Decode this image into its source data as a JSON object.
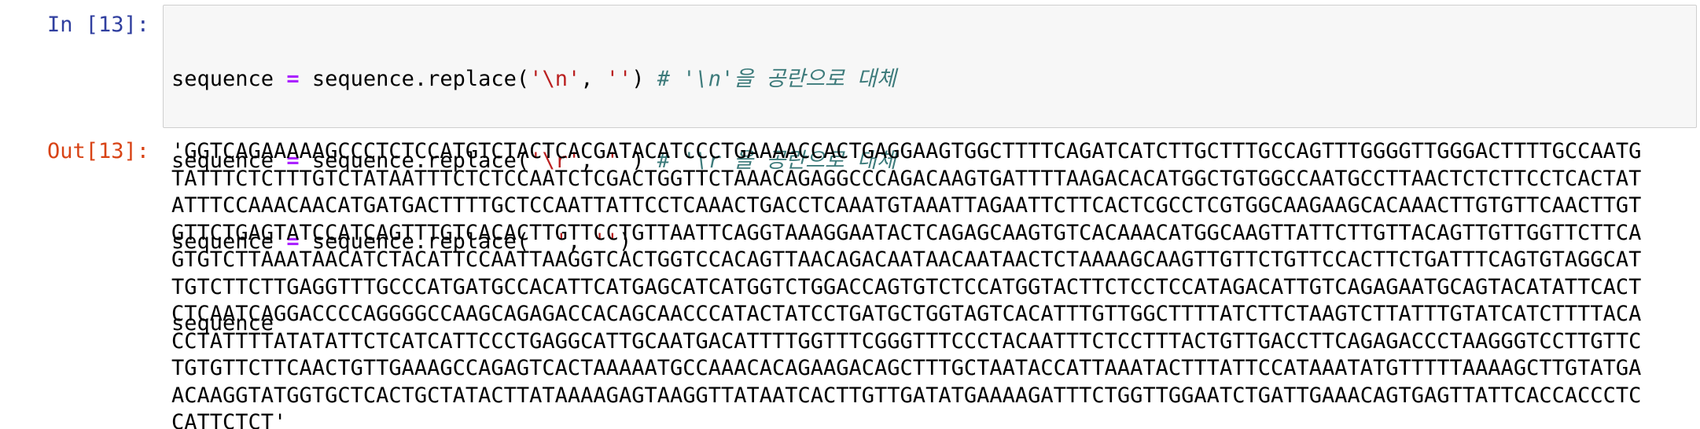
{
  "input": {
    "prompt": "In [13]:",
    "code": [
      [
        "sequence ",
        "=",
        " sequence.replace(",
        "'\\n'",
        ", ",
        "''",
        ") ",
        "# '\\n'을 공란으로 대체"
      ],
      [
        "sequence ",
        "=",
        " sequence.replace(",
        "'\\r'",
        ", ",
        "''",
        ") ",
        "# '\\r'을 공란으로 대체"
      ],
      [
        "sequence ",
        "=",
        " sequence.replace(",
        "' '",
        ", ",
        "''",
        ")"
      ],
      [
        "sequence"
      ]
    ]
  },
  "output": {
    "prompt": "Out[13]:",
    "lines": [
      "'GGTCAGAAAAAGCCCTCTCCATGTCTACTCACGATACATCCCTGAAAACCACTGAGGAAGTGGCTTTTCAGATCATCTTGCTTTGCCAGTTTGGGGTTGGGACTTTTGCCAATG",
      "TATTTCTCTTTGTCTATAATTTCTCTCCAATCTCGACTGGTTCTAAACAGAGGCCCAGACAAGTGATTTTAAGACACATGGCTGTGGCCAATGCCTTAACTCTCTTCCTCACTAT",
      "ATTTCCAAACAACATGATGACTTTTGCTCCAATTATTCCTCAAACTGACCTCAAATGTAAATTAGAATTCTTCACTCGCCTCGTGGCAAGAAGCACAAACTTGTGTTCAACTTGT",
      "GTTCTGAGTATCCATCAGTTTGTCACACTTGTTCCTGTTAATTCAGGTAAAGGAATACTCAGAGCAAGTGTCACAAACATGGCAAGTTATTCTTGTTACAGTTGTTGGTTCTTCA",
      "GTGTCTTAAATAACATCTACATTCCAATTAAGGTCACTGGTCCACAGTTAACAGACAATAACAATAACTCTAAAAGCAAGTTGTTCTGTTCCACTTCTGATTTCAGTGTAGGCAT",
      "TGTCTTCTTGAGGTTTGCCCATGATGCCACATTCATGAGCATCATGGTCTGGACCAGTGTCTCCATGGTACTTCTCCTCCATAGACATTGTCAGAGAATGCAGTACATATTCACT",
      "CTCAATCAGGACCCCAGGGGCCAAGCAGAGACCACAGCAACCCATACTATCCTGATGCTGGTAGTCACATTTGTTGGCTTTTATCTTCTAAGTCTTATTTGTATCATCTTTTACA",
      "CCTATTTTATATATTCTCATCATTCCCTGAGGCATTGCAATGACATTTTGGTTTCGGGTTTCCCTACAATTTCTCCTTTACTGTTGACCTTCAGAGACCCTAAGGGTCCTTGTTC",
      "TGTGTTCTTCAACTGTTGAAAGCCAGAGTCACTAAAAATGCCAAACACAGAAGACAGCTTTGCTAATACCATTAAATACTTTATTCCATAAATATGTTTTTAAAAGCTTGTATGA",
      "ACAAGGTATGGTGCTCACTGCTATACTTATAAAAGAGTAAGGTTATAATCACTTGTTGATATGAAAAGATTTCTGGTTGGAATCTGATTGAAACAGTGAGTTATTCACCACCCTC",
      "CATTCTCT'"
    ]
  }
}
